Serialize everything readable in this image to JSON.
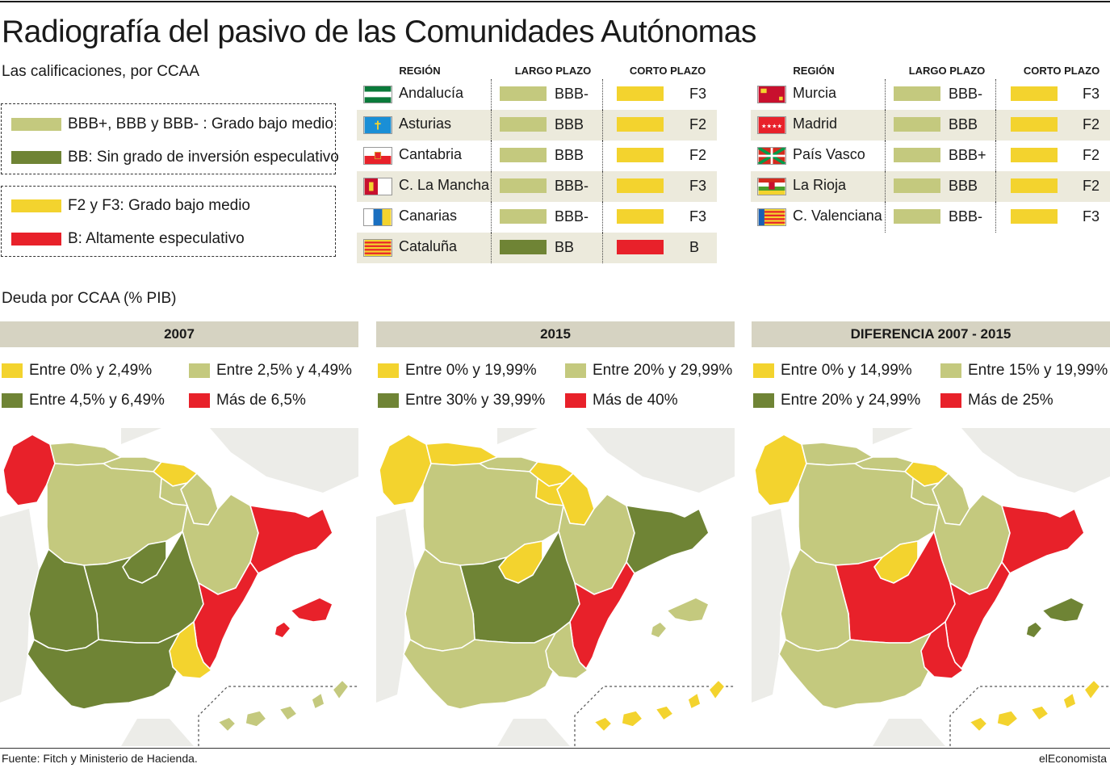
{
  "title": "Radiografía del pasivo de las Comunidades Autónomas",
  "subtitle": "Las calificaciones, por CCAA",
  "colors": {
    "light_green": "#c4c97e",
    "dark_green": "#6f8435",
    "yellow": "#f3d32e",
    "red": "#e8212a",
    "header_bg": "#d6d3c2",
    "row_shade": "#eceadc",
    "gray_land": "#dcdcd6"
  },
  "rating_legend": {
    "long_term": [
      {
        "label": "BBB+, BBB y BBB- : Grado bajo medio",
        "color": "#c4c97e"
      },
      {
        "label": "BB: Sin grado de inversión especulativo",
        "color": "#6f8435"
      }
    ],
    "short_term": [
      {
        "label": "F2 y F3: Grado bajo medio",
        "color": "#f3d32e"
      },
      {
        "label": "B: Altamente especulativo",
        "color": "#e8212a"
      }
    ]
  },
  "table_headers": {
    "region": "REGIÓN",
    "long": "LARGO PLAZO",
    "short": "CORTO PLAZO"
  },
  "ratings_left": [
    {
      "region": "Andalucía",
      "long": "BBB-",
      "short": "F3",
      "flag": "andalucia-flag-icon"
    },
    {
      "region": "Asturias",
      "long": "BBB",
      "short": "F2",
      "flag": "asturias-flag-icon"
    },
    {
      "region": "Cantabria",
      "long": "BBB",
      "short": "F2",
      "flag": "cantabria-flag-icon"
    },
    {
      "region": "C. La Mancha",
      "long": "BBB-",
      "short": "F3",
      "flag": "castilla-la-mancha-flag-icon"
    },
    {
      "region": "Canarias",
      "long": "BBB-",
      "short": "F3",
      "flag": "canarias-flag-icon"
    },
    {
      "region": "Cataluña",
      "long": "BB",
      "short": "B",
      "flag": "cataluna-flag-icon"
    }
  ],
  "ratings_right": [
    {
      "region": "Murcia",
      "long": "BBB-",
      "short": "F3",
      "flag": "murcia-flag-icon"
    },
    {
      "region": "Madrid",
      "long": "BBB",
      "short": "F2",
      "flag": "madrid-flag-icon"
    },
    {
      "region": "País Vasco",
      "long": "BBB+",
      "short": "F2",
      "flag": "pais-vasco-flag-icon"
    },
    {
      "region": "La Rioja",
      "long": "BBB",
      "short": "F2",
      "flag": "la-rioja-flag-icon"
    },
    {
      "region": "C. Valenciana",
      "long": "BBB-",
      "short": "F3",
      "flag": "valenciana-flag-icon"
    }
  ],
  "debt_section_title": "Deuda por CCAA (% PIB)",
  "maps": [
    {
      "title": "2007",
      "legend": [
        {
          "label": "Entre 0% y 2,49%",
          "color": "#f3d32e"
        },
        {
          "label": "Entre 2,5% y 4,49%",
          "color": "#c4c97e"
        },
        {
          "label": "Entre 4,5% y 6,49%",
          "color": "#6f8435"
        },
        {
          "label": "Más de 6,5%",
          "color": "#e8212a"
        }
      ],
      "regions": {
        "galicia": "#e8212a",
        "asturias": "#c4c97e",
        "cantabria": "#c4c97e",
        "pais_vasco": "#f3d32e",
        "navarra": "#c4c97e",
        "castilla_leon": "#c4c97e",
        "la_rioja": "#c4c97e",
        "aragon": "#c4c97e",
        "cataluna": "#e8212a",
        "madrid": "#6f8435",
        "castilla_mancha": "#6f8435",
        "extremadura": "#6f8435",
        "andalucia": "#6f8435",
        "murcia": "#f3d32e",
        "valencia": "#e8212a",
        "baleares": "#e8212a",
        "canarias": "#c4c97e"
      }
    },
    {
      "title": "2015",
      "legend": [
        {
          "label": "Entre 0% y 19,99%",
          "color": "#f3d32e"
        },
        {
          "label": "Entre 20% y 29,99%",
          "color": "#c4c97e"
        },
        {
          "label": "Entre 30% y 39,99%",
          "color": "#6f8435"
        },
        {
          "label": "Más de 40%",
          "color": "#e8212a"
        }
      ],
      "regions": {
        "galicia": "#f3d32e",
        "asturias": "#f3d32e",
        "cantabria": "#c4c97e",
        "pais_vasco": "#f3d32e",
        "navarra": "#f3d32e",
        "castilla_leon": "#c4c97e",
        "la_rioja": "#f3d32e",
        "aragon": "#c4c97e",
        "cataluna": "#6f8435",
        "madrid": "#f3d32e",
        "castilla_mancha": "#6f8435",
        "extremadura": "#c4c97e",
        "andalucia": "#c4c97e",
        "murcia": "#c4c97e",
        "valencia": "#e8212a",
        "baleares": "#c4c97e",
        "canarias": "#f3d32e"
      }
    },
    {
      "title": "DIFERENCIA 2007 - 2015",
      "legend": [
        {
          "label": "Entre 0% y 14,99%",
          "color": "#f3d32e"
        },
        {
          "label": "Entre 15% y 19,99%",
          "color": "#c4c97e"
        },
        {
          "label": "Entre 20% y 24,99%",
          "color": "#6f8435"
        },
        {
          "label": "Más de 25%",
          "color": "#e8212a"
        }
      ],
      "regions": {
        "galicia": "#f3d32e",
        "asturias": "#c4c97e",
        "cantabria": "#c4c97e",
        "pais_vasco": "#f3d32e",
        "navarra": "#c4c97e",
        "castilla_leon": "#c4c97e",
        "la_rioja": "#c4c97e",
        "aragon": "#c4c97e",
        "cataluna": "#e8212a",
        "madrid": "#f3d32e",
        "castilla_mancha": "#e8212a",
        "extremadura": "#c4c97e",
        "andalucia": "#c4c97e",
        "murcia": "#e8212a",
        "valencia": "#e8212a",
        "baleares": "#6f8435",
        "canarias": "#f3d32e"
      }
    }
  ],
  "source": "Fuente: Fitch y Ministerio de Hacienda.",
  "brand": "elEconomista"
}
